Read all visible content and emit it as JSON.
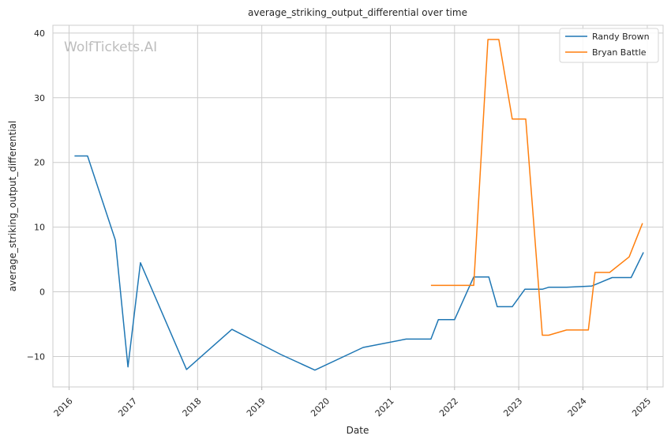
{
  "chart_data": {
    "type": "line",
    "title": "average_striking_output_differential over time",
    "xlabel": "Date",
    "ylabel": "average_striking_output_differential",
    "watermark": "WolfTickets.AI",
    "xlim": [
      "2015-10-01",
      "2025-04-01"
    ],
    "ylim": [
      -14.7,
      41.2
    ],
    "yticks": [
      -10,
      0,
      10,
      20,
      30,
      40
    ],
    "yticklabels": [
      "−10",
      "0",
      "10",
      "20",
      "30",
      "40"
    ],
    "xticks": [
      "2016-01-01",
      "2017-01-01",
      "2018-01-01",
      "2019-01-01",
      "2020-01-01",
      "2021-01-01",
      "2022-01-01",
      "2023-01-01",
      "2024-01-01",
      "2025-01-01"
    ],
    "xticklabels": [
      "2016",
      "2017",
      "2018",
      "2019",
      "2020",
      "2021",
      "2022",
      "2023",
      "2024",
      "2025"
    ],
    "grid": true,
    "legend_position": "top-right",
    "series": [
      {
        "name": "Randy Brown",
        "color": "#1f77b4",
        "points": [
          [
            "2016-02-01",
            21.0
          ],
          [
            "2016-04-15",
            21.0
          ],
          [
            "2016-09-20",
            8.0
          ],
          [
            "2016-12-01",
            -11.6
          ],
          [
            "2017-02-10",
            4.5
          ],
          [
            "2017-10-30",
            -12.0
          ],
          [
            "2018-07-15",
            -5.8
          ],
          [
            "2019-04-20",
            -9.7
          ],
          [
            "2019-10-30",
            -12.1
          ],
          [
            "2020-07-30",
            -8.6
          ],
          [
            "2021-04-01",
            -7.3
          ],
          [
            "2021-08-20",
            -7.3
          ],
          [
            "2021-10-01",
            -4.3
          ],
          [
            "2022-01-01",
            -4.3
          ],
          [
            "2022-04-20",
            2.3
          ],
          [
            "2022-07-15",
            2.3
          ],
          [
            "2022-09-01",
            -2.3
          ],
          [
            "2022-11-25",
            -2.3
          ],
          [
            "2023-02-05",
            0.4
          ],
          [
            "2023-05-15",
            0.4
          ],
          [
            "2023-06-20",
            0.7
          ],
          [
            "2023-09-30",
            0.7
          ],
          [
            "2024-02-20",
            0.9
          ],
          [
            "2024-06-15",
            2.2
          ],
          [
            "2024-10-01",
            2.2
          ],
          [
            "2024-12-10",
            6.1
          ]
        ]
      },
      {
        "name": "Bryan Battle",
        "color": "#ff7f0e",
        "points": [
          [
            "2021-08-20",
            1.0
          ],
          [
            "2022-04-20",
            1.0
          ],
          [
            "2022-07-10",
            39.0
          ],
          [
            "2022-09-10",
            39.0
          ],
          [
            "2022-11-25",
            26.7
          ],
          [
            "2023-02-10",
            26.7
          ],
          [
            "2023-05-15",
            -6.7
          ],
          [
            "2023-06-20",
            -6.7
          ],
          [
            "2023-09-30",
            -5.9
          ],
          [
            "2024-02-01",
            -5.9
          ],
          [
            "2024-03-10",
            3.0
          ],
          [
            "2024-06-01",
            3.0
          ],
          [
            "2024-09-20",
            5.4
          ],
          [
            "2024-12-05",
            10.6
          ]
        ]
      }
    ]
  }
}
